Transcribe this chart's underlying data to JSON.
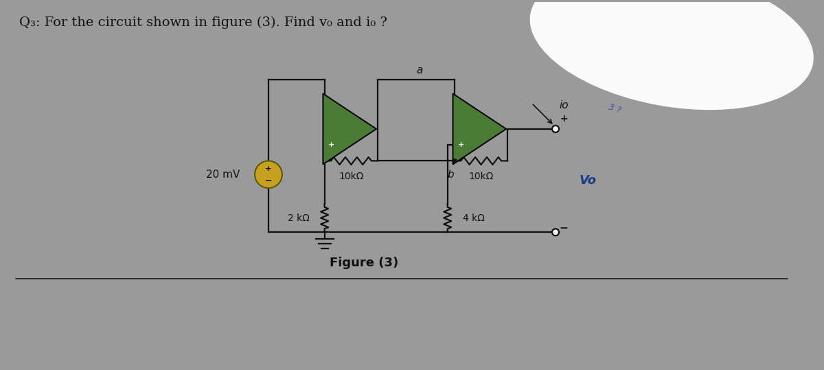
{
  "bg_color_outer": "#9a9a9a",
  "bg_color_paper": "#c8c5be",
  "title": "Q₃: For the circuit shown in figure (3). Find v₀ and i₀ ?",
  "figure_label": "Figure (3)",
  "r1_label": "10kΩ",
  "r2_label": "2 kΩ",
  "r3_label": "10kΩ",
  "r4_label": "4 kΩ",
  "vs_label": "20 mV",
  "node_a": "a",
  "node_b": "b",
  "vo_label": "Vo",
  "io_label": "io",
  "op_amp_color": "#4a7c35",
  "line_color": "#111111",
  "text_color": "#111111",
  "blob_color": "#e8e8e8",
  "handwrite_color": "#3355aa",
  "title_fontsize": 14,
  "label_fontsize": 11,
  "fig_label_fontsize": 13,
  "vs_circle_color": "#c8a020",
  "vo_color": "#1a3a8c"
}
